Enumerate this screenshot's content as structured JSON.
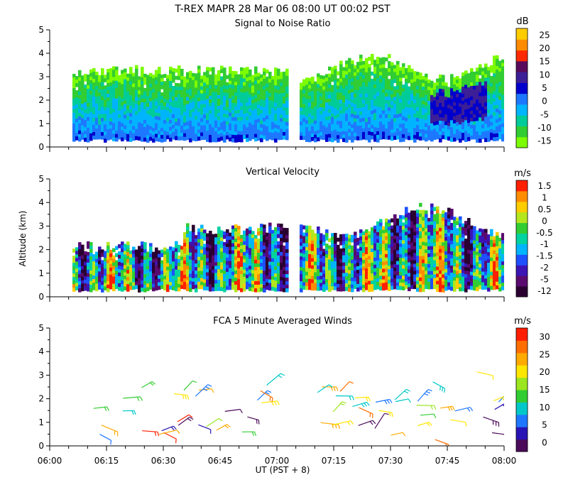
{
  "header": {
    "line1": "T-REX   MAPR 28 Mar 06   08:00 UT   00:02   PST"
  },
  "x_axis": {
    "label": "UT  (PST + 8)",
    "ticks": [
      "06:00",
      "06:15",
      "06:30",
      "06:45",
      "07:00",
      "07:15",
      "07:30",
      "07:45",
      "08:00"
    ]
  },
  "y_axis_label": "Altitude (km)",
  "chart_data": [
    {
      "type": "heatmap",
      "title": "Signal to Noise Ratio",
      "xlim": [
        0,
        120
      ],
      "ylim": [
        0,
        5
      ],
      "ytick_labels": [
        "0",
        "1",
        "2",
        "3",
        "4",
        "5"
      ],
      "data_gap_minutes": [
        63,
        65.5
      ],
      "colorbar": {
        "unit": "dB",
        "labels": [
          "-15",
          "-10",
          "-5",
          "0",
          "5",
          "10",
          "15",
          "20",
          "25"
        ],
        "colors": [
          "#7cfc00",
          "#32cd32",
          "#00cc99",
          "#00b4ff",
          "#1e78ff",
          "#0000cd",
          "#3c1e96",
          "#5a0a5a",
          "#ff2a00",
          "#ff8c00",
          "#ffcc00"
        ]
      }
    },
    {
      "type": "heatmap",
      "title": "Vertical Velocity",
      "xlim": [
        0,
        120
      ],
      "ylim": [
        0,
        5
      ],
      "ytick_labels": [
        "0",
        "1",
        "2",
        "3",
        "4",
        "5"
      ],
      "data_gap_minutes": [
        63,
        65.5
      ],
      "colorbar": {
        "unit": "m/s",
        "labels": [
          "-12",
          "-5",
          "-2",
          "-1.5",
          "-1",
          "-0.5",
          "0",
          "0.5",
          "1",
          "1.5"
        ],
        "colors": [
          "#2a0030",
          "#5a0a6e",
          "#3c14b4",
          "#1e50ff",
          "#00b4ff",
          "#00d2a0",
          "#32cd32",
          "#b4e61e",
          "#ffcc00",
          "#ff8c00",
          "#ff2000"
        ]
      }
    },
    {
      "type": "scatter",
      "title": "FCA 5 Minute Averaged Winds",
      "xlim": [
        0,
        120
      ],
      "ylim": [
        0,
        5
      ],
      "ytick_labels": [
        "0",
        "1",
        "2",
        "3",
        "4",
        "5"
      ],
      "colorbar": {
        "unit": "m/s",
        "labels": [
          "0",
          "5",
          "10",
          "15",
          "20",
          "25",
          "30"
        ],
        "colors": [
          "#4b0a5a",
          "#2814b4",
          "#1e78ff",
          "#00c8c8",
          "#32cd32",
          "#9be61e",
          "#ffe600",
          "#ffaa00",
          "#ff6e00",
          "#ff1e00"
        ]
      }
    }
  ]
}
